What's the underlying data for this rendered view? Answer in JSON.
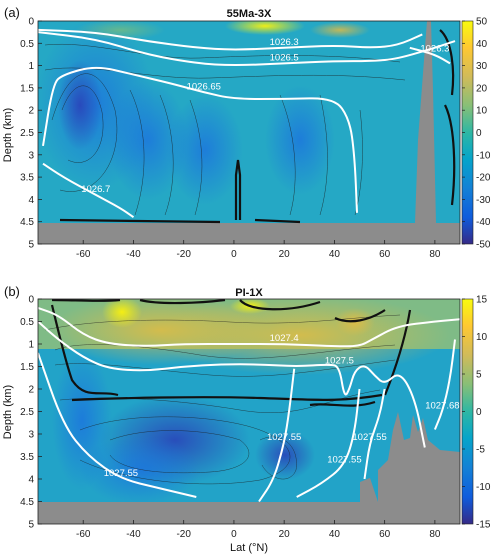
{
  "figure": {
    "xlabel": "Lat (°N)",
    "ylabel": "Depth (km)"
  },
  "chart_data": [
    {
      "type": "heatmap",
      "panel_letter": "(a)",
      "title": "55Ma-3X",
      "xlabel": "",
      "ylabel": "Depth (km)",
      "xlim": [
        -78,
        90
      ],
      "ylim": [
        5,
        0
      ],
      "x_ticks": [
        -60,
        -40,
        -20,
        0,
        20,
        40,
        60,
        80
      ],
      "y_ticks": [
        0,
        0.5,
        1,
        1.5,
        2,
        2.5,
        3,
        3.5,
        4,
        4.5,
        5
      ],
      "colorbar": {
        "min": -50,
        "max": 50,
        "ticks": [
          50,
          40,
          30,
          20,
          10,
          0,
          -10,
          -20,
          -30,
          -40,
          -50
        ]
      },
      "density_contours": [
        {
          "label": "1026.3",
          "points": [
            [
              -78,
              0.2
            ],
            [
              -55,
              0.25
            ],
            [
              -35,
              0.45
            ],
            [
              -15,
              0.6
            ],
            [
              0,
              0.65
            ],
            [
              20,
              0.6
            ],
            [
              40,
              0.55
            ],
            [
              55,
              0.6
            ],
            [
              65,
              0.55
            ],
            [
              75,
              0.3
            ]
          ]
        },
        {
          "label": "1026.3",
          "points": [
            [
              70,
              0.6
            ],
            [
              80,
              0.75
            ],
            [
              86,
              0.95
            ]
          ]
        },
        {
          "label": "1026.5",
          "points": [
            [
              -78,
              0.25
            ],
            [
              -55,
              0.4
            ],
            [
              -35,
              0.75
            ],
            [
              -15,
              0.95
            ],
            [
              0,
              1.0
            ],
            [
              20,
              0.95
            ],
            [
              40,
              0.9
            ],
            [
              55,
              0.9
            ],
            [
              65,
              0.85
            ],
            [
              80,
              0.6
            ],
            [
              88,
              0.45
            ]
          ]
        },
        {
          "label": "1026.65",
          "points": [
            [
              -76,
              2.8
            ],
            [
              -72,
              1.4
            ],
            [
              -68,
              1.2
            ],
            [
              -55,
              1.0
            ],
            [
              -40,
              1.2
            ],
            [
              -25,
              1.4
            ],
            [
              -12,
              1.6
            ],
            [
              0,
              1.75
            ],
            [
              20,
              1.75
            ],
            [
              40,
              1.72
            ],
            [
              46,
              2.2
            ],
            [
              48,
              3.0
            ],
            [
              49,
              4.3
            ]
          ]
        },
        {
          "label": "1026.7",
          "points": [
            [
              -76,
              3.2
            ],
            [
              -68,
              3.5
            ],
            [
              -55,
              3.9
            ],
            [
              -45,
              4.2
            ],
            [
              -40,
              4.4
            ]
          ]
        }
      ]
    },
    {
      "type": "heatmap",
      "panel_letter": "(b)",
      "title": "PI-1X",
      "xlabel": "Lat (°N)",
      "ylabel": "Depth (km)",
      "xlim": [
        -78,
        90
      ],
      "ylim": [
        5,
        0
      ],
      "x_ticks": [
        -60,
        -40,
        -20,
        0,
        20,
        40,
        60,
        80
      ],
      "y_ticks": [
        0,
        0.5,
        1,
        1.5,
        2,
        2.5,
        3,
        3.5,
        4,
        4.5,
        5
      ],
      "colorbar": {
        "min": -15,
        "max": 15,
        "ticks": [
          15,
          10,
          5,
          0,
          -5,
          -10,
          -15
        ]
      },
      "density_contours": [
        {
          "label": "1027.4",
          "points": [
            [
              -78,
              0.2
            ],
            [
              -70,
              0.35
            ],
            [
              -60,
              0.8
            ],
            [
              -50,
              1.0
            ],
            [
              -35,
              1.05
            ],
            [
              -20,
              1.0
            ],
            [
              0,
              1.0
            ],
            [
              20,
              1.0
            ],
            [
              40,
              1.05
            ],
            [
              50,
              1.05
            ],
            [
              55,
              0.9
            ],
            [
              65,
              0.6
            ],
            [
              80,
              0.5
            ],
            [
              90,
              0.45
            ]
          ]
        },
        {
          "label": "1027.5",
          "points": [
            [
              -78,
              0.5
            ],
            [
              -70,
              0.9
            ],
            [
              -60,
              1.3
            ],
            [
              -50,
              1.55
            ],
            [
              -35,
              1.6
            ],
            [
              -20,
              1.5
            ],
            [
              -5,
              1.45
            ],
            [
              10,
              1.45
            ],
            [
              25,
              1.5
            ],
            [
              38,
              1.45
            ],
            [
              42,
              1.5
            ],
            [
              44,
              2.2
            ],
            [
              46,
              2.0
            ],
            [
              48,
              1.6
            ],
            [
              52,
              1.45
            ],
            [
              56,
              1.7
            ],
            [
              60,
              1.9
            ],
            [
              66,
              1.6
            ],
            [
              72,
              2.2
            ],
            [
              76,
              3.3
            ]
          ]
        },
        {
          "label": "1027.55",
          "points": [
            [
              -78,
              1.2
            ],
            [
              -68,
              2.8
            ],
            [
              -58,
              3.5
            ],
            [
              -45,
              4.0
            ],
            [
              -30,
              4.2
            ],
            [
              -15,
              4.4
            ]
          ]
        },
        {
          "label": "1027.55",
          "points": [
            [
              24,
              1.55
            ],
            [
              22,
              2.5
            ],
            [
              20,
              3.2
            ],
            [
              16,
              4.0
            ],
            [
              10,
              4.5
            ]
          ]
        },
        {
          "label": "1027.55",
          "points": [
            [
              50,
              2.0
            ],
            [
              48,
              3.0
            ],
            [
              44,
              3.7
            ],
            [
              35,
              4.1
            ],
            [
              25,
              4.4
            ]
          ]
        },
        {
          "label": "1027.55",
          "points": [
            [
              60,
              2.0
            ],
            [
              58,
              2.6
            ],
            [
              54,
              3.2
            ],
            [
              52,
              4.0
            ]
          ]
        },
        {
          "label": "1027.68",
          "points": [
            [
              88,
              0.9
            ],
            [
              86,
              1.8
            ],
            [
              83,
              2.5
            ],
            [
              80,
              2.9
            ]
          ]
        }
      ]
    }
  ]
}
